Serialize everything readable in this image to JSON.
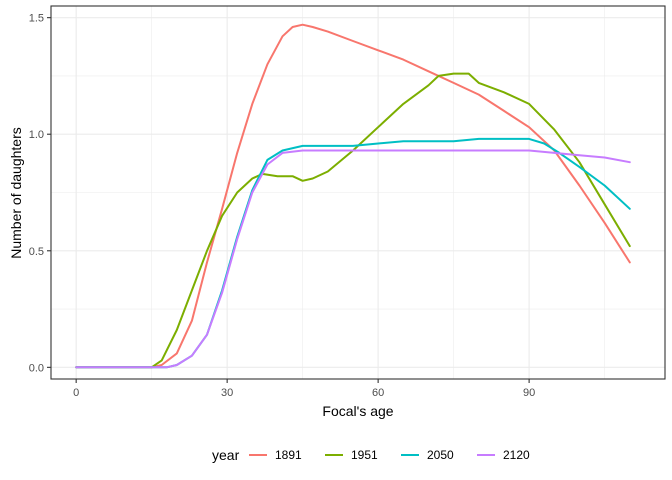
{
  "chart_data": {
    "type": "line",
    "xlabel": "Focal's age",
    "ylabel": "Number of daughters",
    "xlim": [
      -5,
      117
    ],
    "ylim": [
      -0.05,
      1.55
    ],
    "x_ticks": [
      0,
      30,
      60,
      90
    ],
    "x_tick_labels": [
      "0",
      "30",
      "60",
      "90"
    ],
    "y_ticks": [
      0.0,
      0.5,
      1.0,
      1.5
    ],
    "y_tick_labels": [
      "0.0",
      "0.5",
      "1.0",
      "1.5"
    ],
    "grid": true,
    "legend_position": "bottom",
    "legend_title": "year",
    "series": [
      {
        "name": "1891",
        "color": "#F8766D",
        "x": [
          0,
          10,
          15,
          17,
          20,
          23,
          26,
          29,
          32,
          35,
          38,
          41,
          43,
          45,
          47,
          50,
          55,
          60,
          65,
          70,
          75,
          80,
          85,
          90,
          95,
          100,
          105,
          110
        ],
        "y": [
          0,
          0,
          0,
          0.01,
          0.06,
          0.2,
          0.45,
          0.68,
          0.92,
          1.13,
          1.3,
          1.42,
          1.46,
          1.47,
          1.46,
          1.44,
          1.4,
          1.36,
          1.32,
          1.27,
          1.22,
          1.17,
          1.1,
          1.03,
          0.93,
          0.78,
          0.62,
          0.45
        ]
      },
      {
        "name": "1951",
        "color": "#7CAE00",
        "x": [
          0,
          10,
          15,
          17,
          20,
          23,
          26,
          29,
          32,
          35,
          37,
          40,
          43,
          45,
          47,
          50,
          55,
          60,
          65,
          70,
          72,
          75,
          78,
          80,
          85,
          90,
          95,
          100,
          105,
          110
        ],
        "y": [
          0,
          0,
          0,
          0.03,
          0.16,
          0.33,
          0.5,
          0.65,
          0.75,
          0.81,
          0.83,
          0.82,
          0.82,
          0.8,
          0.81,
          0.84,
          0.93,
          1.03,
          1.13,
          1.21,
          1.25,
          1.26,
          1.26,
          1.22,
          1.18,
          1.13,
          1.02,
          0.88,
          0.7,
          0.52
        ]
      },
      {
        "name": "2050",
        "color": "#00BFC4",
        "x": [
          0,
          15,
          18,
          20,
          23,
          26,
          29,
          32,
          35,
          38,
          41,
          45,
          50,
          55,
          60,
          65,
          70,
          75,
          80,
          85,
          90,
          93,
          96,
          100,
          105,
          110
        ],
        "y": [
          0,
          0,
          0.0,
          0.01,
          0.05,
          0.14,
          0.33,
          0.56,
          0.76,
          0.89,
          0.93,
          0.95,
          0.95,
          0.95,
          0.96,
          0.97,
          0.97,
          0.97,
          0.98,
          0.98,
          0.98,
          0.96,
          0.92,
          0.86,
          0.78,
          0.68
        ]
      },
      {
        "name": "2120",
        "color": "#C77CFF",
        "x": [
          0,
          15,
          18,
          20,
          23,
          26,
          29,
          32,
          35,
          38,
          41,
          45,
          50,
          60,
          70,
          80,
          90,
          95,
          100,
          105,
          110
        ],
        "y": [
          0,
          0,
          0.0,
          0.01,
          0.05,
          0.14,
          0.32,
          0.55,
          0.75,
          0.87,
          0.92,
          0.93,
          0.93,
          0.93,
          0.93,
          0.93,
          0.93,
          0.92,
          0.91,
          0.9,
          0.88
        ]
      }
    ]
  }
}
